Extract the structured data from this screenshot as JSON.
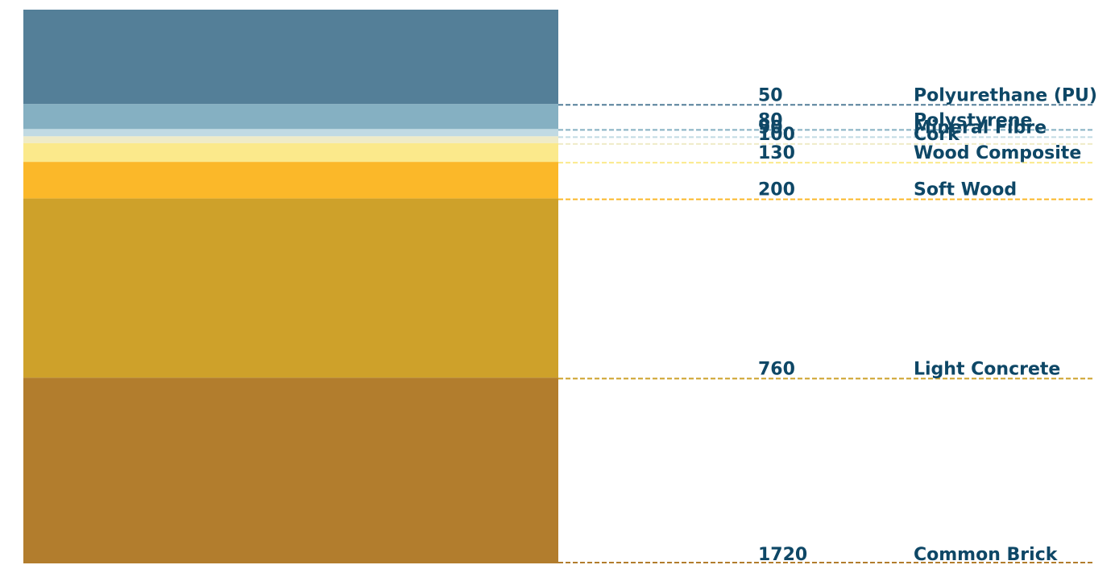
{
  "chart_data": {
    "type": "bar",
    "categories": [
      "Polyurethane (PU)",
      "Polystyrene",
      "Mineral Fibre",
      "Cork",
      "Wood Composite",
      "Soft Wood",
      "Light Concrete",
      "Common Brick"
    ],
    "values": [
      50,
      80,
      90,
      100,
      130,
      200,
      760,
      1720
    ],
    "value_labels": [
      "50",
      "80",
      "90",
      "100",
      "130",
      "200",
      "760",
      "1720"
    ],
    "colors": [
      "#547f98",
      "#85b0c2",
      "#c1dae3",
      "#efebc7",
      "#fbe98b",
      "#fbb829",
      "#cea12a",
      "#b27d2d"
    ],
    "title": "",
    "xlabel": "",
    "ylabel": "",
    "grid": false,
    "legend": "none"
  }
}
